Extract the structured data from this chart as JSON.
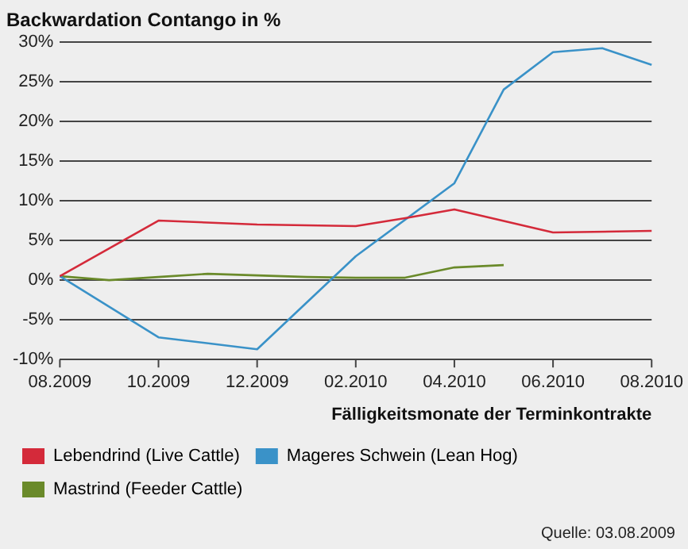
{
  "chart_data": {
    "type": "line",
    "title": "Backwardation Contango in %",
    "xlabel": "Fälligkeitsmonate der Terminkontrakte",
    "categories": [
      "08.2009",
      null,
      "10.2009",
      null,
      "12.2009",
      null,
      "02.2010",
      null,
      "04.2010",
      null,
      "06.2010",
      null,
      "08.2010"
    ],
    "series": [
      {
        "name": "Lebendrind (Live Cattle)",
        "color": "#d42a3a",
        "values": [
          0.5,
          null,
          7.5,
          null,
          7.0,
          null,
          6.8,
          7.8,
          8.9,
          null,
          6.0,
          null,
          6.2
        ]
      },
      {
        "name": "Mageres Schwein (Lean Hog)",
        "color": "#3a92c8",
        "values": [
          0.5,
          null,
          -7.2,
          null,
          -8.7,
          null,
          3.0,
          null,
          12.2,
          24,
          28.7,
          29.2,
          27.1
        ]
      },
      {
        "name": "Mastrind (Feeder Cattle)",
        "color": "#6a8a2a",
        "values": [
          0.5,
          0.0,
          0.4,
          0.8,
          0.6,
          0.4,
          0.3,
          0.3,
          1.6,
          1.9,
          null,
          null,
          null
        ]
      }
    ],
    "ylim": [
      -10,
      30
    ],
    "yticks": [
      {
        "value": -10,
        "label": "-10%"
      },
      {
        "value": -5,
        "label": "-5%"
      },
      {
        "value": 0,
        "label": "0%"
      },
      {
        "value": 5,
        "label": "5%"
      },
      {
        "value": 10,
        "label": "10%"
      },
      {
        "value": 15,
        "label": "15%"
      },
      {
        "value": 20,
        "label": "20%"
      },
      {
        "value": 25,
        "label": "25%"
      },
      {
        "value": 30,
        "label": "30%"
      }
    ],
    "grid": "y",
    "legend": "bottom",
    "marker": "none",
    "line_style": "solid",
    "annotations": [
      "Quelle: 03.08.2009"
    ]
  }
}
